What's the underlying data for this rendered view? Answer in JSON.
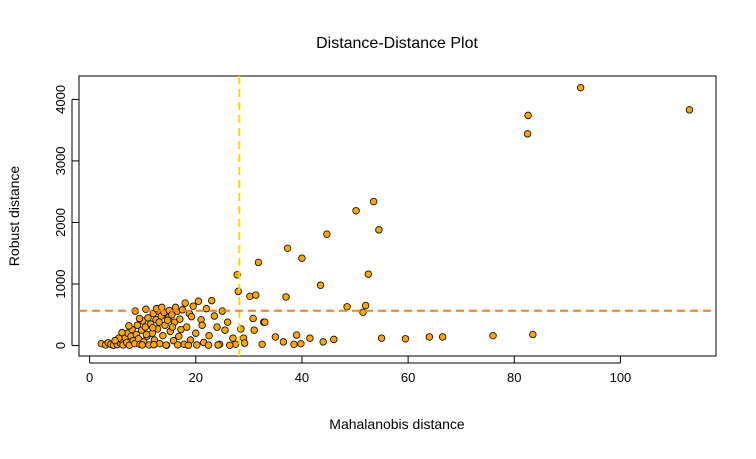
{
  "chart_data": {
    "type": "scatter",
    "title": "Distance-Distance Plot",
    "xlabel": "Mahalanobis distance",
    "ylabel": "Robust distance",
    "xlim": [
      -2,
      118
    ],
    "ylim": [
      -170,
      4380
    ],
    "x_ticks": [
      0,
      20,
      40,
      60,
      80,
      100
    ],
    "y_ticks": [
      0,
      1000,
      2000,
      3000,
      4000
    ],
    "grid": false,
    "point_color": "#FFA500",
    "point_outline": "#000000",
    "cutoff_lines": {
      "x": 28.2,
      "y": 565,
      "x_color": "#FFD700",
      "y_color": "#FF7F0E"
    },
    "points": [
      [
        2.2,
        30
      ],
      [
        3.0,
        10
      ],
      [
        3.5,
        45
      ],
      [
        4.0,
        20
      ],
      [
        4.5,
        5
      ],
      [
        5.0,
        60
      ],
      [
        5.2,
        15
      ],
      [
        5.8,
        40
      ],
      [
        6.0,
        90
      ],
      [
        6.3,
        10
      ],
      [
        6.7,
        130
      ],
      [
        7.0,
        50
      ],
      [
        7.2,
        200
      ],
      [
        7.5,
        5
      ],
      [
        7.8,
        150
      ],
      [
        8.0,
        260
      ],
      [
        8.2,
        80
      ],
      [
        8.5,
        30
      ],
      [
        8.8,
        180
      ],
      [
        9.0,
        330
      ],
      [
        9.2,
        110
      ],
      [
        9.5,
        20
      ],
      [
        9.8,
        250
      ],
      [
        10.0,
        400
      ],
      [
        10.2,
        60
      ],
      [
        10.5,
        300
      ],
      [
        10.8,
        150
      ],
      [
        11.0,
        450
      ],
      [
        11.2,
        10
      ],
      [
        11.5,
        350
      ],
      [
        11.8,
        200
      ],
      [
        12.0,
        520
      ],
      [
        12.2,
        90
      ],
      [
        12.5,
        420
      ],
      [
        12.8,
        270
      ],
      [
        13.0,
        560
      ],
      [
        13.2,
        30
      ],
      [
        13.5,
        480
      ],
      [
        13.8,
        160
      ],
      [
        14.0,
        540
      ],
      [
        14.2,
        330
      ],
      [
        14.5,
        5
      ],
      [
        14.8,
        450
      ],
      [
        15.0,
        570
      ],
      [
        15.2,
        230
      ],
      [
        15.5,
        500
      ],
      [
        15.8,
        80
      ],
      [
        16.0,
        380
      ],
      [
        16.5,
        560
      ],
      [
        16.8,
        150
      ],
      [
        17.0,
        430
      ],
      [
        17.5,
        580
      ],
      [
        17.8,
        20
      ],
      [
        18.0,
        690
      ],
      [
        18.3,
        300
      ],
      [
        18.8,
        520
      ],
      [
        19.0,
        90
      ],
      [
        19.5,
        640
      ],
      [
        20.0,
        200
      ],
      [
        20.5,
        720
      ],
      [
        21.0,
        420
      ],
      [
        21.5,
        50
      ],
      [
        22.0,
        600
      ],
      [
        22.5,
        160
      ],
      [
        23.0,
        730
      ],
      [
        23.5,
        480
      ],
      [
        24.0,
        300
      ],
      [
        24.5,
        20
      ],
      [
        25.0,
        560
      ],
      [
        25.5,
        250
      ],
      [
        26.0,
        380
      ],
      [
        27.0,
        120
      ],
      [
        27.5,
        20
      ],
      [
        8.6,
        560
      ],
      [
        10.6,
        590
      ],
      [
        12.6,
        600
      ],
      [
        13.6,
        620
      ],
      [
        16.2,
        620
      ],
      [
        9.4,
        440
      ],
      [
        11.9,
        290
      ],
      [
        13.1,
        380
      ],
      [
        14.7,
        410
      ],
      [
        7.4,
        320
      ],
      [
        6.1,
        210
      ],
      [
        5.5,
        120
      ],
      [
        4.8,
        80
      ],
      [
        15.6,
        300
      ],
      [
        17.2,
        260
      ],
      [
        19.2,
        470
      ],
      [
        21.2,
        330
      ],
      [
        9.9,
        10
      ],
      [
        12.1,
        15
      ],
      [
        14.4,
        8
      ],
      [
        16.6,
        12
      ],
      [
        18.6,
        5
      ],
      [
        20.2,
        10
      ],
      [
        22.4,
        6
      ],
      [
        24.2,
        9
      ],
      [
        26.4,
        4
      ],
      [
        10.7,
        180
      ],
      [
        27.8,
        1150
      ],
      [
        28.0,
        880
      ],
      [
        28.5,
        270
      ],
      [
        29.0,
        120
      ],
      [
        29.2,
        40
      ],
      [
        30.2,
        800
      ],
      [
        30.8,
        440
      ],
      [
        31.0,
        250
      ],
      [
        31.3,
        820
      ],
      [
        31.8,
        1350
      ],
      [
        32.5,
        20
      ],
      [
        32.8,
        380
      ],
      [
        33.0,
        380
      ],
      [
        35.0,
        140
      ],
      [
        36.5,
        60
      ],
      [
        37.0,
        790
      ],
      [
        37.3,
        1580
      ],
      [
        38.5,
        20
      ],
      [
        39.0,
        170
      ],
      [
        39.8,
        30
      ],
      [
        40.0,
        1420
      ],
      [
        41.5,
        120
      ],
      [
        43.5,
        980
      ],
      [
        44.0,
        60
      ],
      [
        44.7,
        1810
      ],
      [
        46.0,
        100
      ],
      [
        48.5,
        630
      ],
      [
        50.2,
        2190
      ],
      [
        51.5,
        540
      ],
      [
        52.0,
        650
      ],
      [
        52.5,
        1160
      ],
      [
        53.5,
        2340
      ],
      [
        54.5,
        1880
      ],
      [
        55.0,
        120
      ],
      [
        59.5,
        110
      ],
      [
        64.0,
        140
      ],
      [
        66.5,
        140
      ],
      [
        76.0,
        160
      ],
      [
        82.5,
        3440
      ],
      [
        82.6,
        3740
      ],
      [
        83.5,
        180
      ],
      [
        92.5,
        4190
      ],
      [
        113.0,
        3830
      ]
    ]
  }
}
